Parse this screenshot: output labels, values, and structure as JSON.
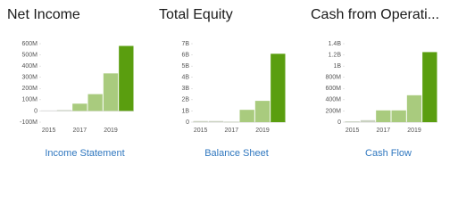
{
  "chart_data": [
    {
      "type": "bar",
      "title": "Net Income",
      "link": "Income Statement",
      "categories": [
        "2015",
        null,
        "2017",
        null,
        "2019",
        null
      ],
      "values": [
        null,
        8,
        65,
        150,
        335,
        580
      ],
      "colors": [
        "#c9d1c0",
        "#c9d1c0",
        "#a9cb7e",
        "#a9cb7e",
        "#a9cb7e",
        "#5a9e0f"
      ],
      "ylim": [
        -100,
        600
      ],
      "yticks": [
        {
          "value": -100,
          "label": "-100M"
        },
        0,
        {
          "value": 100,
          "label": "100M"
        },
        {
          "value": 200,
          "label": "200M"
        },
        {
          "value": 300,
          "label": "300M"
        },
        {
          "value": 400,
          "label": "400M"
        },
        {
          "value": 500,
          "label": "500M"
        },
        {
          "value": 600,
          "label": "600M"
        }
      ]
    },
    {
      "type": "bar",
      "title": "Total Equity",
      "link": "Balance Sheet",
      "categories": [
        "2015",
        null,
        "2017",
        null,
        "2019",
        null
      ],
      "values": [
        0.1,
        0.1,
        0.05,
        1.1,
        1.9,
        6.1
      ],
      "colors": [
        "#c9d1c0",
        "#c9d1c0",
        "#c9d1c0",
        "#a9cb7e",
        "#a9cb7e",
        "#5a9e0f"
      ],
      "ylim": [
        0,
        7
      ],
      "yticks": [
        0,
        {
          "value": 1,
          "label": "1B"
        },
        {
          "value": 2,
          "label": "2B"
        },
        {
          "value": 3,
          "label": "3B"
        },
        {
          "value": 4,
          "label": "4B"
        },
        {
          "value": 5,
          "label": "5B"
        },
        {
          "value": 6,
          "label": "6B"
        },
        {
          "value": 7,
          "label": "7B"
        }
      ]
    },
    {
      "type": "bar",
      "title": "Cash from Operati...",
      "link": "Cash Flow",
      "categories": [
        "2015",
        null,
        "2017",
        null,
        "2019",
        null
      ],
      "values": [
        15,
        35,
        210,
        210,
        480,
        1250
      ],
      "colors": [
        "#c9d1c0",
        "#c9d1c0",
        "#a9cb7e",
        "#a9cb7e",
        "#a9cb7e",
        "#5a9e0f"
      ],
      "ylim": [
        0,
        1400
      ],
      "yticks": [
        0,
        {
          "value": 200,
          "label": "200M"
        },
        {
          "value": 400,
          "label": "400M"
        },
        {
          "value": 600,
          "label": "600M"
        },
        {
          "value": 800,
          "label": "800M"
        },
        {
          "value": 1000,
          "label": "1B"
        },
        {
          "value": 1200,
          "label": "1.2B"
        },
        {
          "value": 1400,
          "label": "1.4B"
        }
      ]
    }
  ]
}
